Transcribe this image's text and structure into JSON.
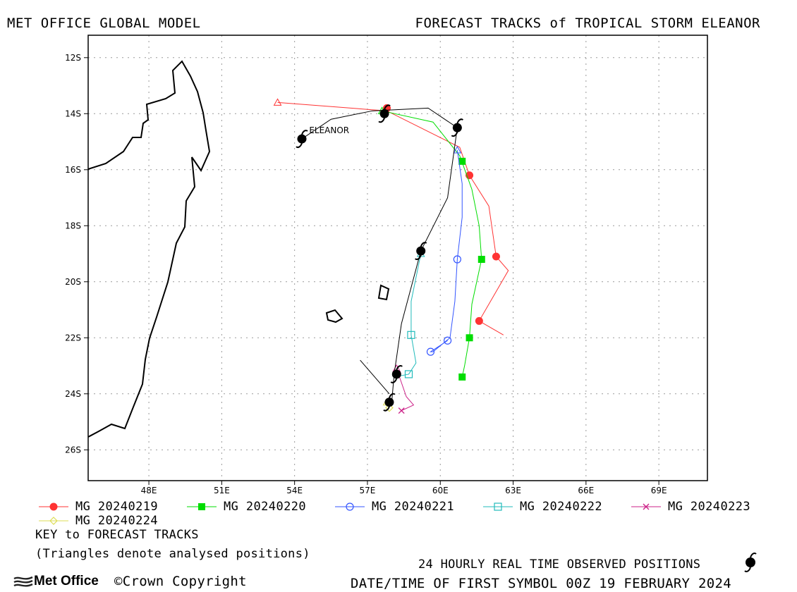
{
  "header": {
    "left_title": "MET OFFICE GLOBAL MODEL",
    "right_title": "FORECAST TRACKS of TROPICAL STORM ELEANOR"
  },
  "map": {
    "lon_range": [
      45.5,
      71.0
    ],
    "lat_range": [
      -27.1,
      -11.2
    ],
    "x_ticks": [
      "48E",
      "51E",
      "54E",
      "57E",
      "60E",
      "63E",
      "66E",
      "69E"
    ],
    "x_tick_values": [
      48,
      51,
      54,
      57,
      60,
      63,
      66,
      69
    ],
    "y_ticks": [
      "12S",
      "14S",
      "16S",
      "18S",
      "20S",
      "22S",
      "24S",
      "26S"
    ],
    "y_tick_values": [
      -12,
      -14,
      -16,
      -18,
      -20,
      -22,
      -24,
      -26
    ],
    "grid": "dotted",
    "storm_label": "ELEANOR",
    "storm_label_pos": [
      54.6,
      -14.6
    ]
  },
  "observed_track": [
    [
      54.3,
      -14.9
    ],
    [
      55.5,
      -14.2
    ],
    [
      57.2,
      -13.9
    ],
    [
      59.5,
      -13.8
    ],
    [
      60.7,
      -14.5
    ],
    [
      60.3,
      -17.0
    ],
    [
      59.2,
      -18.9
    ],
    [
      58.4,
      -21.5
    ],
    [
      58.1,
      -23.3
    ],
    [
      58.0,
      -24.3
    ]
  ],
  "observed_symbols": [
    [
      54.3,
      -14.9
    ],
    [
      57.7,
      -14.0
    ],
    [
      60.7,
      -14.5
    ],
    [
      59.2,
      -18.9
    ],
    [
      58.2,
      -23.3
    ],
    [
      57.9,
      -24.3
    ]
  ],
  "observed_tail": [
    [
      56.7,
      -22.8
    ],
    [
      57.9,
      -24.0
    ]
  ],
  "chart_data": {
    "type": "map",
    "series": [
      {
        "name": "MG 20240219",
        "color": "#ff3333",
        "marker": "circle-filled",
        "analysed": [
          53.3,
          -13.6
        ],
        "track": [
          [
            53.3,
            -13.6
          ],
          [
            57.8,
            -13.9
          ],
          [
            60.8,
            -15.2
          ],
          [
            61.2,
            -16.2
          ],
          [
            62.0,
            -17.3
          ],
          [
            62.3,
            -19.1
          ],
          [
            62.8,
            -19.6
          ],
          [
            61.6,
            -21.4
          ],
          [
            62.6,
            -21.9
          ]
        ],
        "markers": [
          [
            57.8,
            -13.8
          ],
          [
            61.2,
            -16.2
          ],
          [
            62.3,
            -19.1
          ],
          [
            61.6,
            -21.4
          ]
        ]
      },
      {
        "name": "MG 20240220",
        "color": "#00dd00",
        "marker": "square-filled",
        "analysed": [
          57.6,
          -13.9
        ],
        "track": [
          [
            57.6,
            -13.9
          ],
          [
            59.7,
            -14.3
          ],
          [
            60.8,
            -15.5
          ],
          [
            61.3,
            -16.7
          ],
          [
            61.6,
            -18.0
          ],
          [
            61.7,
            -19.2
          ],
          [
            61.3,
            -20.8
          ],
          [
            61.2,
            -22.0
          ],
          [
            61.0,
            -23.0
          ],
          [
            60.9,
            -23.4
          ]
        ],
        "markers": [
          [
            60.9,
            -15.7
          ],
          [
            61.7,
            -19.2
          ],
          [
            61.2,
            -22.0
          ],
          [
            60.9,
            -23.4
          ]
        ]
      },
      {
        "name": "MG 20240221",
        "color": "#3355ff",
        "marker": "circle-open",
        "analysed": [
          60.7,
          -15.3
        ],
        "track": [
          [
            60.7,
            -15.3
          ],
          [
            60.9,
            -16.5
          ],
          [
            60.9,
            -17.7
          ],
          [
            60.7,
            -19.2
          ],
          [
            60.6,
            -20.7
          ],
          [
            60.4,
            -22.0
          ],
          [
            59.7,
            -22.5
          ],
          [
            59.6,
            -22.5
          ],
          [
            60.3,
            -22.1
          ]
        ],
        "markers": [
          [
            60.7,
            -19.2
          ],
          [
            60.3,
            -22.1
          ],
          [
            59.6,
            -22.5
          ]
        ]
      },
      {
        "name": "MG 20240222",
        "color": "#22bbbb",
        "marker": "square-open",
        "analysed": [
          59.2,
          -19.0
        ],
        "track": [
          [
            59.2,
            -19.0
          ],
          [
            58.8,
            -20.7
          ],
          [
            58.8,
            -21.9
          ],
          [
            59.0,
            -22.9
          ],
          [
            58.7,
            -23.3
          ],
          [
            58.1,
            -23.4
          ]
        ],
        "markers": [
          [
            58.8,
            -21.9
          ],
          [
            58.7,
            -23.3
          ]
        ]
      },
      {
        "name": "MG 20240223",
        "color": "#cc2288",
        "marker": "x",
        "analysed": [
          58.2,
          -23.1
        ],
        "track": [
          [
            58.2,
            -23.1
          ],
          [
            58.6,
            -24.1
          ],
          [
            58.9,
            -24.4
          ],
          [
            58.4,
            -24.6
          ]
        ],
        "markers": [
          [
            58.4,
            -24.6
          ]
        ]
      },
      {
        "name": "MG 20240224",
        "color": "#dddd55",
        "marker": "diamond",
        "analysed": [
          57.8,
          -24.3
        ],
        "track": [
          [
            57.8,
            -24.3
          ],
          [
            57.9,
            -24.5
          ]
        ],
        "markers": [
          [
            57.9,
            -24.5
          ]
        ]
      }
    ]
  },
  "legend": {
    "labels": [
      "MG 20240219",
      "MG 20240220",
      "MG 20240221",
      "MG 20240222",
      "MG 20240223",
      "MG 20240224"
    ]
  },
  "notes": {
    "key_title": "KEY to FORECAST TRACKS",
    "key_sub": "(Triangles denote analysed positions)",
    "observed": "24 HOURLY REAL TIME OBSERVED POSITIONS",
    "datetime": "DATE/TIME OF FIRST SYMBOL 00Z 19 FEBRUARY 2024"
  },
  "footer": {
    "logo_text": "Met Office",
    "copyright": "Crown Copyright"
  },
  "icons": {
    "observed_symbol": "tropical-cyclone-icon",
    "logo": "met-office-logo-icon",
    "copyright": "copyright-icon"
  }
}
